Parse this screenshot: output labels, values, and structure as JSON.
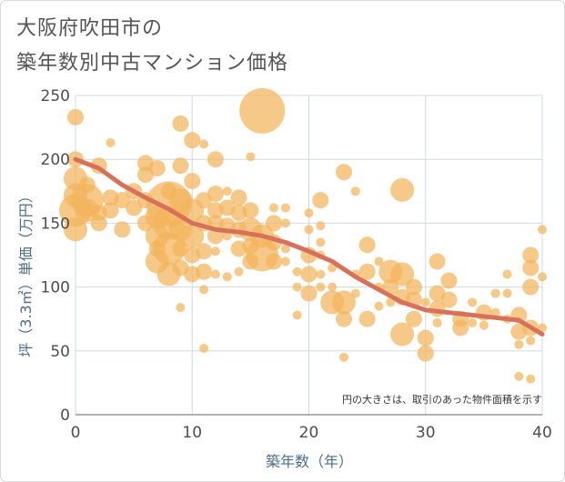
{
  "title_line1": "大阪府吹田市の",
  "title_line2": "築年数別中古マンション価格",
  "chart_data": {
    "type": "scatter",
    "xlabel": "築年数（年）",
    "ylabel": "坪（3.3㎡）単価（万円）",
    "xlim": [
      0,
      40
    ],
    "ylim": [
      0,
      250
    ],
    "x_ticks": [
      "0",
      "10",
      "20",
      "30",
      "40"
    ],
    "y_ticks": [
      "0",
      "50",
      "100",
      "150",
      "200",
      "250"
    ],
    "grid": true,
    "annotation": "円の大きさは、取引のあった物件面積を示す",
    "bubble_color": "#f3b45c",
    "line_color": "#d9705a",
    "points": [
      {
        "x": 0,
        "y": 233,
        "s": 2
      },
      {
        "x": 0,
        "y": 200,
        "s": 2
      },
      {
        "x": 0,
        "y": 185,
        "s": 3
      },
      {
        "x": 0,
        "y": 172,
        "s": 3
      },
      {
        "x": 0,
        "y": 160,
        "s": 4
      },
      {
        "x": 0,
        "y": 145,
        "s": 3
      },
      {
        "x": 1,
        "y": 180,
        "s": 2
      },
      {
        "x": 1,
        "y": 168,
        "s": 4
      },
      {
        "x": 1,
        "y": 160,
        "s": 3
      },
      {
        "x": 2,
        "y": 195,
        "s": 2
      },
      {
        "x": 2,
        "y": 158,
        "s": 2
      },
      {
        "x": 2,
        "y": 150,
        "s": 2
      },
      {
        "x": 3,
        "y": 213,
        "s": 1
      },
      {
        "x": 3,
        "y": 170,
        "s": 2
      },
      {
        "x": 3,
        "y": 160,
        "s": 2
      },
      {
        "x": 4,
        "y": 168,
        "s": 2
      },
      {
        "x": 4,
        "y": 145,
        "s": 2
      },
      {
        "x": 5,
        "y": 175,
        "s": 2
      },
      {
        "x": 5,
        "y": 162,
        "s": 2
      },
      {
        "x": 6,
        "y": 197,
        "s": 2
      },
      {
        "x": 6,
        "y": 188,
        "s": 2
      },
      {
        "x": 6,
        "y": 168,
        "s": 2
      },
      {
        "x": 6,
        "y": 150,
        "s": 2
      },
      {
        "x": 7,
        "y": 155,
        "s": 3
      },
      {
        "x": 7,
        "y": 140,
        "s": 3
      },
      {
        "x": 7,
        "y": 130,
        "s": 2
      },
      {
        "x": 7,
        "y": 120,
        "s": 3
      },
      {
        "x": 7,
        "y": 193,
        "s": 2
      },
      {
        "x": 8,
        "y": 165,
        "s": 5
      },
      {
        "x": 8,
        "y": 150,
        "s": 4
      },
      {
        "x": 8,
        "y": 130,
        "s": 4
      },
      {
        "x": 8,
        "y": 110,
        "s": 3
      },
      {
        "x": 8,
        "y": 175,
        "s": 2
      },
      {
        "x": 9,
        "y": 228,
        "s": 2
      },
      {
        "x": 9,
        "y": 195,
        "s": 2
      },
      {
        "x": 9,
        "y": 168,
        "s": 3
      },
      {
        "x": 9,
        "y": 145,
        "s": 3
      },
      {
        "x": 9,
        "y": 130,
        "s": 2
      },
      {
        "x": 9,
        "y": 115,
        "s": 2
      },
      {
        "x": 9,
        "y": 84,
        "s": 1
      },
      {
        "x": 10,
        "y": 215,
        "s": 2
      },
      {
        "x": 10,
        "y": 183,
        "s": 2
      },
      {
        "x": 10,
        "y": 160,
        "s": 3
      },
      {
        "x": 10,
        "y": 140,
        "s": 3
      },
      {
        "x": 10,
        "y": 125,
        "s": 2
      },
      {
        "x": 10,
        "y": 110,
        "s": 2
      },
      {
        "x": 11,
        "y": 212,
        "s": 1
      },
      {
        "x": 11,
        "y": 168,
        "s": 2
      },
      {
        "x": 11,
        "y": 150,
        "s": 2
      },
      {
        "x": 11,
        "y": 128,
        "s": 2
      },
      {
        "x": 11,
        "y": 112,
        "s": 2
      },
      {
        "x": 11,
        "y": 98,
        "s": 1
      },
      {
        "x": 11,
        "y": 52,
        "s": 1
      },
      {
        "x": 12,
        "y": 200,
        "s": 2
      },
      {
        "x": 12,
        "y": 173,
        "s": 2
      },
      {
        "x": 12,
        "y": 160,
        "s": 2
      },
      {
        "x": 12,
        "y": 150,
        "s": 2
      },
      {
        "x": 12,
        "y": 140,
        "s": 2
      },
      {
        "x": 12,
        "y": 128,
        "s": 1
      },
      {
        "x": 12,
        "y": 110,
        "s": 1
      },
      {
        "x": 13,
        "y": 175,
        "s": 1
      },
      {
        "x": 13,
        "y": 162,
        "s": 2
      },
      {
        "x": 13,
        "y": 148,
        "s": 2
      },
      {
        "x": 13,
        "y": 140,
        "s": 1
      },
      {
        "x": 13,
        "y": 108,
        "s": 1
      },
      {
        "x": 14,
        "y": 170,
        "s": 2
      },
      {
        "x": 14,
        "y": 158,
        "s": 2
      },
      {
        "x": 14,
        "y": 145,
        "s": 2
      },
      {
        "x": 14,
        "y": 130,
        "s": 2
      },
      {
        "x": 14,
        "y": 112,
        "s": 1
      },
      {
        "x": 15,
        "y": 202,
        "s": 1
      },
      {
        "x": 15,
        "y": 160,
        "s": 2
      },
      {
        "x": 15,
        "y": 145,
        "s": 3
      },
      {
        "x": 15,
        "y": 132,
        "s": 2
      },
      {
        "x": 15,
        "y": 120,
        "s": 2
      },
      {
        "x": 16,
        "y": 238,
        "s": 5
      },
      {
        "x": 16,
        "y": 140,
        "s": 3
      },
      {
        "x": 16,
        "y": 125,
        "s": 4
      },
      {
        "x": 17,
        "y": 162,
        "s": 1
      },
      {
        "x": 17,
        "y": 150,
        "s": 2
      },
      {
        "x": 17,
        "y": 135,
        "s": 2
      },
      {
        "x": 17,
        "y": 120,
        "s": 2
      },
      {
        "x": 18,
        "y": 162,
        "s": 1
      },
      {
        "x": 18,
        "y": 150,
        "s": 1
      },
      {
        "x": 18,
        "y": 130,
        "s": 1
      },
      {
        "x": 18,
        "y": 120,
        "s": 1
      },
      {
        "x": 19,
        "y": 112,
        "s": 1
      },
      {
        "x": 19,
        "y": 100,
        "s": 1
      },
      {
        "x": 19,
        "y": 78,
        "s": 1
      },
      {
        "x": 20,
        "y": 158,
        "s": 1
      },
      {
        "x": 20,
        "y": 145,
        "s": 1
      },
      {
        "x": 20,
        "y": 125,
        "s": 2
      },
      {
        "x": 20,
        "y": 110,
        "s": 2
      },
      {
        "x": 20,
        "y": 95,
        "s": 2
      },
      {
        "x": 21,
        "y": 168,
        "s": 2
      },
      {
        "x": 21,
        "y": 148,
        "s": 1
      },
      {
        "x": 21,
        "y": 135,
        "s": 1
      },
      {
        "x": 21,
        "y": 125,
        "s": 1
      },
      {
        "x": 21,
        "y": 110,
        "s": 1
      },
      {
        "x": 21,
        "y": 100,
        "s": 1
      },
      {
        "x": 22,
        "y": 115,
        "s": 1
      },
      {
        "x": 22,
        "y": 100,
        "s": 1
      },
      {
        "x": 22,
        "y": 88,
        "s": 3
      },
      {
        "x": 23,
        "y": 190,
        "s": 2
      },
      {
        "x": 23,
        "y": 88,
        "s": 3
      },
      {
        "x": 23,
        "y": 75,
        "s": 2
      },
      {
        "x": 23,
        "y": 45,
        "s": 1
      },
      {
        "x": 24,
        "y": 175,
        "s": 1
      },
      {
        "x": 24,
        "y": 110,
        "s": 1
      },
      {
        "x": 24,
        "y": 95,
        "s": 1
      },
      {
        "x": 25,
        "y": 133,
        "s": 2
      },
      {
        "x": 25,
        "y": 112,
        "s": 2
      },
      {
        "x": 25,
        "y": 75,
        "s": 2
      },
      {
        "x": 26,
        "y": 120,
        "s": 1
      },
      {
        "x": 26,
        "y": 100,
        "s": 1
      },
      {
        "x": 26,
        "y": 85,
        "s": 1
      },
      {
        "x": 27,
        "y": 112,
        "s": 3
      },
      {
        "x": 27,
        "y": 100,
        "s": 2
      },
      {
        "x": 27,
        "y": 88,
        "s": 1
      },
      {
        "x": 28,
        "y": 176,
        "s": 3
      },
      {
        "x": 28,
        "y": 110,
        "s": 3
      },
      {
        "x": 28,
        "y": 92,
        "s": 2
      },
      {
        "x": 28,
        "y": 63,
        "s": 3
      },
      {
        "x": 29,
        "y": 100,
        "s": 2
      },
      {
        "x": 29,
        "y": 90,
        "s": 2
      },
      {
        "x": 29,
        "y": 75,
        "s": 2
      },
      {
        "x": 30,
        "y": 88,
        "s": 1
      },
      {
        "x": 30,
        "y": 60,
        "s": 2
      },
      {
        "x": 30,
        "y": 48,
        "s": 2
      },
      {
        "x": 31,
        "y": 120,
        "s": 2
      },
      {
        "x": 31,
        "y": 95,
        "s": 2
      },
      {
        "x": 31,
        "y": 83,
        "s": 2
      },
      {
        "x": 31,
        "y": 72,
        "s": 1
      },
      {
        "x": 32,
        "y": 105,
        "s": 2
      },
      {
        "x": 32,
        "y": 90,
        "s": 2
      },
      {
        "x": 33,
        "y": 75,
        "s": 2
      },
      {
        "x": 33,
        "y": 68,
        "s": 2
      },
      {
        "x": 34,
        "y": 88,
        "s": 1
      },
      {
        "x": 34,
        "y": 72,
        "s": 1
      },
      {
        "x": 35,
        "y": 80,
        "s": 2
      },
      {
        "x": 35,
        "y": 70,
        "s": 1
      },
      {
        "x": 36,
        "y": 95,
        "s": 1
      },
      {
        "x": 36,
        "y": 80,
        "s": 1
      },
      {
        "x": 37,
        "y": 110,
        "s": 1
      },
      {
        "x": 37,
        "y": 95,
        "s": 1
      },
      {
        "x": 37,
        "y": 75,
        "s": 1
      },
      {
        "x": 38,
        "y": 78,
        "s": 2
      },
      {
        "x": 38,
        "y": 65,
        "s": 2
      },
      {
        "x": 38,
        "y": 55,
        "s": 1
      },
      {
        "x": 38,
        "y": 30,
        "s": 1
      },
      {
        "x": 39,
        "y": 125,
        "s": 2
      },
      {
        "x": 39,
        "y": 115,
        "s": 2
      },
      {
        "x": 39,
        "y": 100,
        "s": 2
      },
      {
        "x": 39,
        "y": 68,
        "s": 2
      },
      {
        "x": 39,
        "y": 58,
        "s": 1
      },
      {
        "x": 39,
        "y": 28,
        "s": 1
      },
      {
        "x": 40,
        "y": 145,
        "s": 1
      },
      {
        "x": 40,
        "y": 108,
        "s": 1
      },
      {
        "x": 40,
        "y": 68,
        "s": 1
      }
    ],
    "trend": [
      {
        "x": 0,
        "y": 200
      },
      {
        "x": 2,
        "y": 193
      },
      {
        "x": 4,
        "y": 180
      },
      {
        "x": 6,
        "y": 170
      },
      {
        "x": 8,
        "y": 161
      },
      {
        "x": 10,
        "y": 150
      },
      {
        "x": 12,
        "y": 145
      },
      {
        "x": 14,
        "y": 143
      },
      {
        "x": 16,
        "y": 140
      },
      {
        "x": 18,
        "y": 135
      },
      {
        "x": 20,
        "y": 128
      },
      {
        "x": 22,
        "y": 120
      },
      {
        "x": 24,
        "y": 108
      },
      {
        "x": 26,
        "y": 98
      },
      {
        "x": 28,
        "y": 88
      },
      {
        "x": 30,
        "y": 82
      },
      {
        "x": 32,
        "y": 80
      },
      {
        "x": 34,
        "y": 78
      },
      {
        "x": 36,
        "y": 76
      },
      {
        "x": 38,
        "y": 74
      },
      {
        "x": 40,
        "y": 63
      }
    ]
  }
}
